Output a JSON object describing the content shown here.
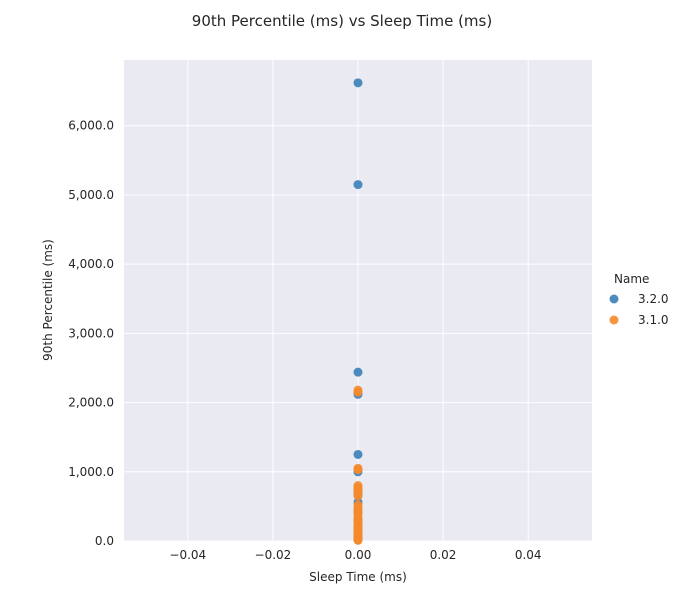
{
  "chart_data": {
    "type": "scatter",
    "title": "90th Percentile (ms) vs Sleep Time (ms)",
    "xlabel": "Sleep Time (ms)",
    "ylabel": "90th Percentile (ms)",
    "xlim": [
      -0.055,
      0.055
    ],
    "ylim": [
      0,
      6950
    ],
    "x_ticks": [
      -0.04,
      -0.02,
      0.0,
      0.02,
      0.04
    ],
    "x_tick_labels": [
      "−0.04",
      "−0.02",
      "0.00",
      "0.02",
      "0.04"
    ],
    "y_ticks": [
      0,
      1000,
      2000,
      3000,
      4000,
      5000,
      6000
    ],
    "y_tick_labels": [
      "0.0",
      "1,000.0",
      "2,000.0",
      "3,000.0",
      "4,000.0",
      "5,000.0",
      "6,000.0"
    ],
    "grid": true,
    "legend": {
      "title": "Name",
      "placement": "right"
    },
    "series": [
      {
        "name": "3.2.0",
        "color": "#3a80b8",
        "points": [
          [
            0,
            6620
          ],
          [
            0,
            5150
          ],
          [
            0,
            2440
          ],
          [
            0,
            2120
          ],
          [
            0,
            1250
          ],
          [
            0,
            1000
          ],
          [
            0,
            730
          ],
          [
            0,
            680
          ],
          [
            0,
            560
          ],
          [
            0,
            420
          ],
          [
            0,
            300
          ],
          [
            0,
            200
          ],
          [
            0,
            130
          ],
          [
            0,
            80
          ],
          [
            0,
            40
          ],
          [
            0,
            15
          ]
        ]
      },
      {
        "name": "3.1.0",
        "color": "#f5892a",
        "points": [
          [
            0,
            2180
          ],
          [
            0,
            2150
          ],
          [
            0,
            1050
          ],
          [
            0,
            1030
          ],
          [
            0,
            800
          ],
          [
            0,
            770
          ],
          [
            0,
            740
          ],
          [
            0,
            700
          ],
          [
            0,
            650
          ],
          [
            0,
            520
          ],
          [
            0,
            480
          ],
          [
            0,
            450
          ],
          [
            0,
            420
          ],
          [
            0,
            380
          ],
          [
            0,
            340
          ],
          [
            0,
            300
          ],
          [
            0,
            260
          ],
          [
            0,
            230
          ],
          [
            0,
            200
          ],
          [
            0,
            180
          ],
          [
            0,
            160
          ],
          [
            0,
            140
          ],
          [
            0,
            120
          ],
          [
            0,
            100
          ],
          [
            0,
            80
          ],
          [
            0,
            60
          ],
          [
            0,
            40
          ],
          [
            0,
            25
          ],
          [
            0,
            10
          ]
        ]
      }
    ]
  }
}
